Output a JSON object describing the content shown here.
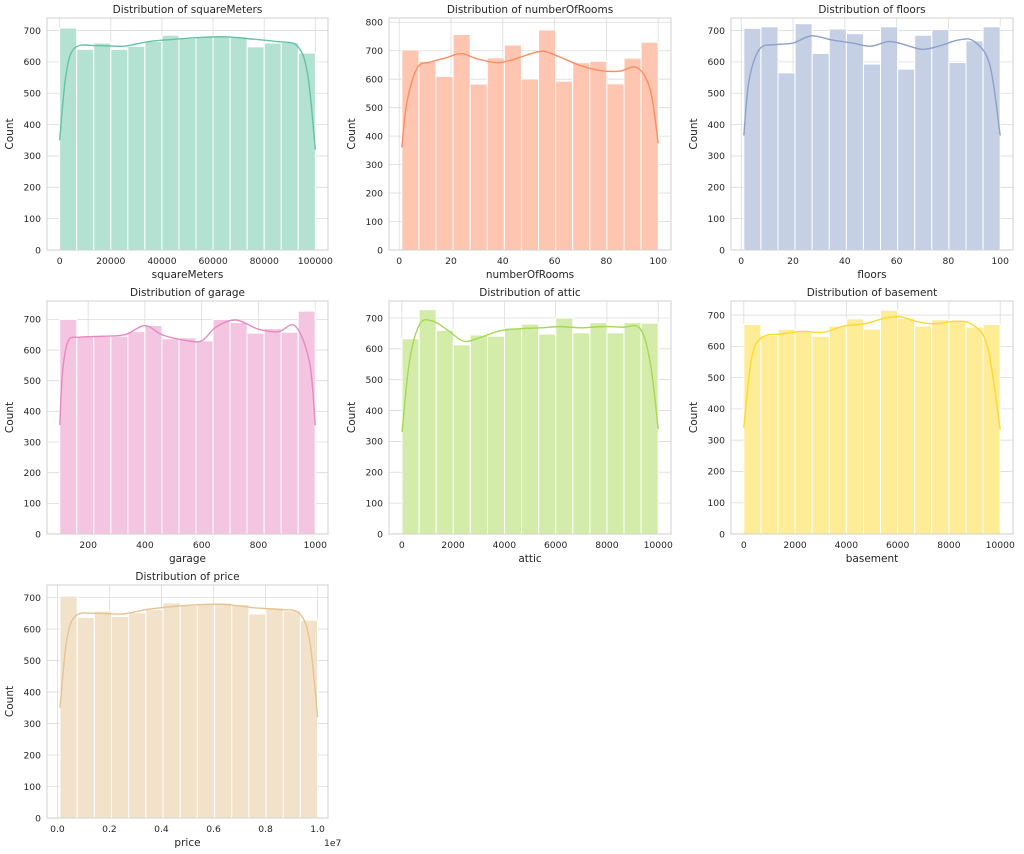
{
  "chart_data": [
    {
      "type": "bar",
      "title": "Distribution of squareMeters",
      "xlabel": "squareMeters",
      "ylabel": "Count",
      "color": "#66c2a5",
      "xlim": [
        -4950,
        104950
      ],
      "ylim": [
        0,
        740
      ],
      "xticks": [
        0,
        20000,
        40000,
        60000,
        80000,
        100000
      ],
      "xtick_labels": [
        "0",
        "20000",
        "40000",
        "60000",
        "80000",
        "100000"
      ],
      "yticks": [
        0,
        100,
        200,
        300,
        400,
        500,
        600,
        700
      ],
      "bin_edges": [
        0,
        6667,
        13333,
        20000,
        26667,
        33333,
        40000,
        46667,
        53333,
        60000,
        66667,
        73333,
        80000,
        86667,
        93333,
        100000
      ],
      "values": [
        708,
        640,
        660,
        640,
        650,
        665,
        685,
        675,
        680,
        680,
        680,
        648,
        660,
        662,
        628
      ],
      "kde": [
        [
          0,
          350
        ],
        [
          2500,
          560
        ],
        [
          6000,
          645
        ],
        [
          15000,
          652
        ],
        [
          25000,
          650
        ],
        [
          35000,
          665
        ],
        [
          45000,
          672
        ],
        [
          55000,
          678
        ],
        [
          65000,
          680
        ],
        [
          75000,
          673
        ],
        [
          85000,
          665
        ],
        [
          93000,
          650
        ],
        [
          97000,
          560
        ],
        [
          100000,
          320
        ]
      ],
      "offset_label": ""
    },
    {
      "type": "bar",
      "title": "Distribution of numberOfRooms",
      "xlabel": "numberOfRooms",
      "ylabel": "Count",
      "color": "#fc8d62",
      "xlim": [
        -3.95,
        104.95
      ],
      "ylim": [
        0,
        815
      ],
      "xticks": [
        0,
        20,
        40,
        60,
        80,
        100
      ],
      "xtick_labels": [
        "0",
        "20",
        "40",
        "60",
        "80",
        "100"
      ],
      "yticks": [
        0,
        100,
        200,
        300,
        400,
        500,
        600,
        700,
        800
      ],
      "bin_edges": [
        1,
        7.6,
        14.2,
        20.8,
        27.4,
        34,
        40.6,
        47.2,
        53.8,
        60.4,
        67,
        73.6,
        80.2,
        86.8,
        93.4,
        100
      ],
      "values": [
        703,
        663,
        610,
        757,
        583,
        675,
        720,
        601,
        773,
        593,
        658,
        663,
        584,
        674,
        730
      ],
      "kde": [
        [
          1,
          360
        ],
        [
          3,
          520
        ],
        [
          7,
          640
        ],
        [
          12,
          660
        ],
        [
          18,
          675
        ],
        [
          24,
          690
        ],
        [
          30,
          672
        ],
        [
          38,
          658
        ],
        [
          45,
          672
        ],
        [
          51,
          690
        ],
        [
          56,
          698
        ],
        [
          62,
          678
        ],
        [
          70,
          648
        ],
        [
          78,
          630
        ],
        [
          85,
          628
        ],
        [
          92,
          640
        ],
        [
          97,
          560
        ],
        [
          100,
          375
        ]
      ],
      "offset_label": ""
    },
    {
      "type": "bar",
      "title": "Distribution of floors",
      "xlabel": "floors",
      "ylabel": "Count",
      "color": "#8da0cb",
      "xlim": [
        -3.95,
        104.95
      ],
      "ylim": [
        0,
        740
      ],
      "xticks": [
        0,
        20,
        40,
        60,
        80,
        100
      ],
      "xtick_labels": [
        "0",
        "20",
        "40",
        "60",
        "80",
        "100"
      ],
      "yticks": [
        0,
        100,
        200,
        300,
        400,
        500,
        600,
        700
      ],
      "bin_edges": [
        1,
        7.6,
        14.2,
        20.8,
        27.4,
        34,
        40.6,
        47.2,
        53.8,
        60.4,
        67,
        73.6,
        80.2,
        86.8,
        93.4,
        100
      ],
      "values": [
        707,
        712,
        565,
        722,
        627,
        705,
        690,
        593,
        712,
        577,
        685,
        703,
        598,
        667,
        712
      ],
      "kde": [
        [
          1,
          365
        ],
        [
          3,
          540
        ],
        [
          7,
          640
        ],
        [
          13,
          655
        ],
        [
          20,
          660
        ],
        [
          27,
          683
        ],
        [
          35,
          670
        ],
        [
          43,
          660
        ],
        [
          50,
          650
        ],
        [
          57,
          665
        ],
        [
          63,
          655
        ],
        [
          70,
          640
        ],
        [
          77,
          652
        ],
        [
          84,
          670
        ],
        [
          90,
          665
        ],
        [
          96,
          590
        ],
        [
          100,
          365
        ]
      ],
      "offset_label": ""
    },
    {
      "type": "bar",
      "title": "Distribution of garage",
      "xlabel": "garage",
      "ylabel": "Count",
      "color": "#e78ac3",
      "xlim": [
        55,
        1045
      ],
      "ylim": [
        0,
        760
      ],
      "xticks": [
        200,
        400,
        600,
        800,
        1000
      ],
      "xtick_labels": [
        "200",
        "400",
        "600",
        "800",
        "1000"
      ],
      "yticks": [
        0,
        100,
        200,
        300,
        400,
        500,
        600,
        700
      ],
      "bin_edges": [
        100,
        160,
        220,
        280,
        340,
        400,
        460,
        520,
        580,
        640,
        700,
        760,
        820,
        880,
        940,
        1000
      ],
      "values": [
        700,
        645,
        645,
        645,
        660,
        680,
        637,
        640,
        630,
        700,
        690,
        655,
        670,
        658,
        727
      ],
      "kde": [
        [
          100,
          355
        ],
        [
          110,
          530
        ],
        [
          130,
          630
        ],
        [
          170,
          642
        ],
        [
          250,
          645
        ],
        [
          330,
          650
        ],
        [
          400,
          680
        ],
        [
          460,
          650
        ],
        [
          540,
          632
        ],
        [
          600,
          630
        ],
        [
          650,
          675
        ],
        [
          720,
          698
        ],
        [
          800,
          668
        ],
        [
          870,
          660
        ],
        [
          930,
          678
        ],
        [
          980,
          560
        ],
        [
          1000,
          355
        ]
      ],
      "offset_label": ""
    },
    {
      "type": "bar",
      "title": "Distribution of attic",
      "xlabel": "attic",
      "ylabel": "Count",
      "color": "#a6d854",
      "xlim": [
        -499.5,
        10499.5
      ],
      "ylim": [
        0,
        755
      ],
      "xticks": [
        0,
        2000,
        4000,
        6000,
        8000,
        10000
      ],
      "xtick_labels": [
        "0",
        "2000",
        "4000",
        "6000",
        "8000",
        "10000"
      ],
      "yticks": [
        0,
        100,
        200,
        300,
        400,
        500,
        600,
        700
      ],
      "bin_edges": [
        10,
        676,
        1342,
        2008,
        2674,
        3340,
        4006,
        4672,
        5338,
        6004,
        6670,
        7336,
        8002,
        8668,
        9334,
        10000
      ],
      "values": [
        633,
        727,
        660,
        613,
        645,
        641,
        668,
        680,
        648,
        700,
        652,
        685,
        652,
        685,
        683
      ],
      "kde": [
        [
          10,
          330
        ],
        [
          300,
          560
        ],
        [
          700,
          680
        ],
        [
          1200,
          690
        ],
        [
          1800,
          660
        ],
        [
          2400,
          625
        ],
        [
          3000,
          635
        ],
        [
          3800,
          658
        ],
        [
          4600,
          665
        ],
        [
          5400,
          668
        ],
        [
          6200,
          672
        ],
        [
          7000,
          668
        ],
        [
          7800,
          672
        ],
        [
          8600,
          670
        ],
        [
          9300,
          665
        ],
        [
          9700,
          550
        ],
        [
          10000,
          340
        ]
      ],
      "offset_label": ""
    },
    {
      "type": "bar",
      "title": "Distribution of basement",
      "xlabel": "basement",
      "ylabel": "Count",
      "color": "#ffd92f",
      "xlim": [
        -499.5,
        10499.5
      ],
      "ylim": [
        0,
        745
      ],
      "xticks": [
        0,
        2000,
        4000,
        6000,
        8000,
        10000
      ],
      "xtick_labels": [
        "0",
        "2000",
        "4000",
        "6000",
        "8000",
        "10000"
      ],
      "yticks": [
        0,
        100,
        200,
        300,
        400,
        500,
        600,
        700
      ],
      "bin_edges": [
        0,
        667,
        1333,
        2000,
        2667,
        3333,
        4000,
        4667,
        5333,
        6000,
        6667,
        7333,
        8000,
        8667,
        9333,
        10000
      ],
      "values": [
        670,
        635,
        655,
        648,
        632,
        665,
        688,
        655,
        715,
        690,
        665,
        685,
        680,
        662,
        670
      ],
      "kde": [
        [
          0,
          340
        ],
        [
          300,
          560
        ],
        [
          700,
          628
        ],
        [
          1500,
          640
        ],
        [
          2300,
          648
        ],
        [
          3100,
          645
        ],
        [
          3900,
          665
        ],
        [
          4700,
          672
        ],
        [
          5500,
          690
        ],
        [
          6100,
          695
        ],
        [
          6800,
          678
        ],
        [
          7500,
          672
        ],
        [
          8200,
          680
        ],
        [
          8900,
          670
        ],
        [
          9500,
          600
        ],
        [
          10000,
          335
        ]
      ],
      "offset_label": ""
    },
    {
      "type": "bar",
      "title": "Distribution of price",
      "xlabel": "price",
      "ylabel": "Count",
      "color": "#e5c494",
      "xlim": [
        -0.04,
        1.04
      ],
      "ylim": [
        0,
        740
      ],
      "xticks": [
        0.0,
        0.2,
        0.4,
        0.6,
        0.8,
        1.0
      ],
      "xtick_labels": [
        "0.0",
        "0.2",
        "0.4",
        "0.6",
        "0.8",
        "1.0"
      ],
      "yticks": [
        0,
        100,
        200,
        300,
        400,
        500,
        600,
        700
      ],
      "bin_edges": [
        0.01,
        0.076,
        0.142,
        0.208,
        0.274,
        0.34,
        0.406,
        0.472,
        0.538,
        0.604,
        0.67,
        0.736,
        0.802,
        0.868,
        0.934,
        1.0
      ],
      "values": [
        705,
        637,
        657,
        640,
        652,
        662,
        683,
        675,
        680,
        683,
        678,
        648,
        668,
        658,
        628
      ],
      "kde": [
        [
          0.01,
          350
        ],
        [
          0.035,
          560
        ],
        [
          0.07,
          642
        ],
        [
          0.15,
          650
        ],
        [
          0.25,
          648
        ],
        [
          0.35,
          663
        ],
        [
          0.45,
          672
        ],
        [
          0.55,
          678
        ],
        [
          0.65,
          678
        ],
        [
          0.75,
          668
        ],
        [
          0.85,
          662
        ],
        [
          0.93,
          650
        ],
        [
          0.97,
          560
        ],
        [
          1.0,
          320
        ]
      ],
      "offset_label": "1e7"
    }
  ]
}
